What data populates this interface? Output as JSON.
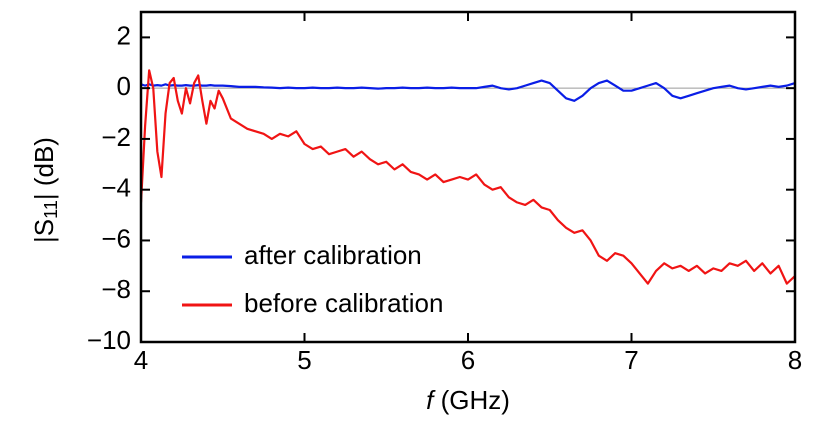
{
  "chart_data": {
    "type": "line",
    "xlabel_parts": [
      "f",
      " (GHz)"
    ],
    "ylabel_parts": [
      "|S",
      "11",
      "| (dB)"
    ],
    "x": [
      4.0,
      4.025,
      4.05,
      4.075,
      4.1,
      4.125,
      4.15,
      4.175,
      4.2,
      4.225,
      4.25,
      4.275,
      4.3,
      4.325,
      4.35,
      4.375,
      4.4,
      4.425,
      4.45,
      4.475,
      4.5,
      4.55,
      4.6,
      4.65,
      4.7,
      4.75,
      4.8,
      4.85,
      4.9,
      4.95,
      5.0,
      5.05,
      5.1,
      5.15,
      5.2,
      5.25,
      5.3,
      5.35,
      5.4,
      5.45,
      5.5,
      5.55,
      5.6,
      5.65,
      5.7,
      5.75,
      5.8,
      5.85,
      5.9,
      5.95,
      6.0,
      6.05,
      6.1,
      6.15,
      6.2,
      6.25,
      6.3,
      6.35,
      6.4,
      6.45,
      6.5,
      6.55,
      6.6,
      6.65,
      6.7,
      6.75,
      6.8,
      6.85,
      6.9,
      6.95,
      7.0,
      7.05,
      7.1,
      7.15,
      7.2,
      7.25,
      7.3,
      7.35,
      7.4,
      7.45,
      7.5,
      7.55,
      7.6,
      7.65,
      7.7,
      7.75,
      7.8,
      7.85,
      7.9,
      7.95,
      8.0
    ],
    "series": [
      {
        "name": "after calibration",
        "color": "#0a1ee6",
        "values": [
          0.15,
          0.1,
          0.15,
          0.1,
          0.12,
          0.1,
          0.15,
          0.1,
          0.12,
          0.1,
          0.1,
          0.12,
          0.1,
          0.1,
          0.12,
          0.1,
          0.1,
          0.12,
          0.1,
          0.1,
          0.1,
          0.08,
          0.05,
          0.05,
          0.05,
          0.03,
          0.02,
          0.0,
          0.02,
          0.0,
          0.0,
          0.02,
          0.0,
          0.0,
          0.02,
          0.0,
          0.0,
          0.02,
          0.0,
          -0.02,
          0.0,
          0.0,
          0.02,
          0.0,
          0.0,
          0.02,
          0.0,
          0.0,
          0.02,
          0.0,
          0.0,
          0.0,
          0.05,
          0.1,
          0.0,
          -0.05,
          0.0,
          0.1,
          0.2,
          0.3,
          0.2,
          -0.1,
          -0.4,
          -0.5,
          -0.3,
          0.0,
          0.2,
          0.3,
          0.1,
          -0.1,
          -0.1,
          0.0,
          0.1,
          0.2,
          0.0,
          -0.3,
          -0.4,
          -0.3,
          -0.2,
          -0.1,
          0.0,
          0.05,
          0.1,
          0.0,
          -0.05,
          0.0,
          0.05,
          0.1,
          0.05,
          0.1,
          0.2
        ]
      },
      {
        "name": "before calibration",
        "color": "#f01414",
        "values": [
          -4.5,
          -1.5,
          0.7,
          0.0,
          -2.5,
          -3.5,
          -1.0,
          0.2,
          0.4,
          -0.5,
          -1.0,
          0.0,
          -0.6,
          0.2,
          0.5,
          -0.5,
          -1.4,
          -0.5,
          -0.8,
          -0.1,
          -0.4,
          -1.2,
          -1.4,
          -1.6,
          -1.7,
          -1.8,
          -2.0,
          -1.8,
          -1.9,
          -1.7,
          -2.2,
          -2.4,
          -2.3,
          -2.6,
          -2.5,
          -2.4,
          -2.7,
          -2.5,
          -2.8,
          -3.0,
          -2.9,
          -3.2,
          -3.0,
          -3.3,
          -3.4,
          -3.6,
          -3.4,
          -3.7,
          -3.6,
          -3.5,
          -3.6,
          -3.4,
          -3.8,
          -4.0,
          -3.9,
          -4.3,
          -4.5,
          -4.6,
          -4.4,
          -4.7,
          -4.8,
          -5.2,
          -5.5,
          -5.7,
          -5.6,
          -6.0,
          -6.6,
          -6.8,
          -6.5,
          -6.6,
          -6.9,
          -7.3,
          -7.7,
          -7.2,
          -6.9,
          -7.1,
          -7.0,
          -7.2,
          -7.0,
          -7.3,
          -7.1,
          -7.2,
          -6.9,
          -7.0,
          -6.8,
          -7.2,
          -6.9,
          -7.3,
          -7.0,
          -7.7,
          -7.4
        ]
      }
    ],
    "reference_line": 0,
    "reference_color": "#9a9a9a",
    "xlim": [
      4,
      8
    ],
    "xticks": [
      4,
      5,
      6,
      7,
      8
    ],
    "ylim": [
      -10,
      3
    ],
    "yticks": [
      {
        "value": -10,
        "label": "−10"
      },
      {
        "value": -8,
        "label": "−8"
      },
      {
        "value": -6,
        "label": "−6"
      },
      {
        "value": -4,
        "label": "−4"
      },
      {
        "value": -2,
        "label": "−2"
      },
      0,
      2
    ],
    "legend": "lower left",
    "grid": false
  }
}
